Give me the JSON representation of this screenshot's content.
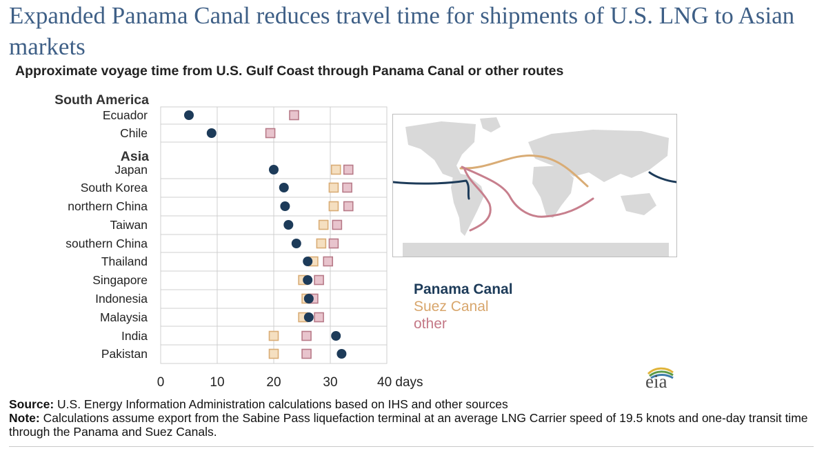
{
  "title": "Expanded Panama Canal reduces travel time for shipments of U.S. LNG to Asian markets",
  "subtitle": "Approximate voyage time from U.S. Gulf Coast through Panama Canal or other routes",
  "colors": {
    "panama": "#1d3b59",
    "suez_fill": "#f5dfc0",
    "suez_stroke": "#d9ac75",
    "suez_text": "#d8a66c",
    "other_fill": "#e8c4cd",
    "other_stroke": "#b77a88",
    "other_text": "#c47886",
    "grid": "#cfcfcf",
    "map_land": "#d9d9d9"
  },
  "chart_data": {
    "type": "scatter",
    "subtitle": "Approximate voyage time from U.S. Gulf Coast through Panama Canal or other routes",
    "x_ticks": [
      "0",
      "10",
      "20",
      "30",
      "40 days"
    ],
    "xlim": [
      0,
      40
    ],
    "grid": true,
    "groups": [
      {
        "label": "South America",
        "rows": [
          "Ecuador",
          "Chile"
        ]
      },
      {
        "label": "Asia",
        "rows": [
          "Japan",
          "South Korea",
          "northern China",
          "Taiwan",
          "southern China",
          "Thailand",
          "Singapore",
          "Indonesia",
          "Malaysia",
          "India",
          "Pakistan"
        ]
      }
    ],
    "categories": [
      "Ecuador",
      "Chile",
      "Japan",
      "South Korea",
      "northern China",
      "Taiwan",
      "southern China",
      "Thailand",
      "Singapore",
      "Indonesia",
      "Malaysia",
      "India",
      "Pakistan"
    ],
    "series": [
      {
        "name": "Panama Canal",
        "marker": "circle",
        "values": [
          5,
          9,
          20,
          21.8,
          22,
          22.6,
          24,
          26,
          26,
          26.2,
          26.2,
          31,
          32
        ]
      },
      {
        "name": "Suez Canal",
        "marker": "square",
        "values": [
          null,
          null,
          31,
          30.6,
          30.6,
          28.8,
          28.4,
          27,
          25.2,
          25.8,
          25.2,
          20,
          20
        ]
      },
      {
        "name": "other",
        "marker": "square",
        "values": [
          23.6,
          19.4,
          33.2,
          33,
          33.2,
          31.2,
          30.6,
          29.6,
          28,
          27,
          28,
          25.8,
          25.8
        ]
      }
    ],
    "legend": [
      "Panama Canal",
      "Suez Canal",
      "other"
    ]
  },
  "footer": {
    "source_label": "Source:",
    "source_text": " U.S. Energy Information Administration calculations based on IHS and other sources",
    "note_label": "Note:",
    "note_text": " Calculations assume export from the Sabine Pass liquefaction terminal at an average LNG Carrier speed of 19.5 knots and one-day transit time through the Panama and Suez Canals."
  },
  "logo": "eia"
}
